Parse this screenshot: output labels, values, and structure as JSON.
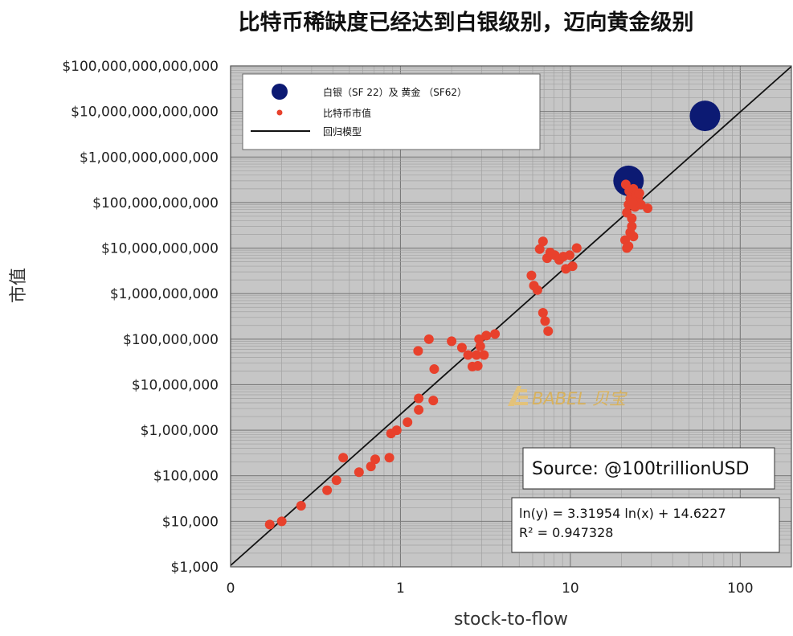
{
  "chart_data": {
    "type": "scatter",
    "title": "比特币稀缺度已经达到白银级别，迈向黄金级别",
    "xlabel": "stock-to-flow",
    "ylabel": "市值",
    "x_scale": "log",
    "y_scale": "log",
    "xlim": [
      0.1,
      200
    ],
    "ylim": [
      1000,
      100000000000000
    ],
    "x_ticks": [
      {
        "value": 0.1,
        "label": "0"
      },
      {
        "value": 1,
        "label": "1"
      },
      {
        "value": 10,
        "label": "10"
      },
      {
        "value": 100,
        "label": "100"
      }
    ],
    "y_ticks": [
      {
        "value": 1000,
        "label": "$1,000"
      },
      {
        "value": 10000,
        "label": "$10,000"
      },
      {
        "value": 100000,
        "label": "$100,000"
      },
      {
        "value": 1000000,
        "label": "$1,000,000"
      },
      {
        "value": 10000000,
        "label": "$10,000,000"
      },
      {
        "value": 100000000,
        "label": "$100,000,000"
      },
      {
        "value": 1000000000,
        "label": "$1,000,000,000"
      },
      {
        "value": 10000000000,
        "label": "$10,000,000,000"
      },
      {
        "value": 100000000000,
        "label": "$100,000,000,000"
      },
      {
        "value": 1000000000000,
        "label": "$1,000,000,000,000"
      },
      {
        "value": 10000000000000,
        "label": "$10,000,000,000,000"
      },
      {
        "value": 100000000000000,
        "label": "$100,000,000,000,000"
      }
    ],
    "grid": true,
    "legend_position": "top-left",
    "series": [
      {
        "name": "白银（SF 22）及 黄金 （SF62）",
        "kind": "scatter",
        "color": "#0c1a73",
        "marker": "large",
        "points": [
          {
            "x": 22,
            "y": 300000000000
          },
          {
            "x": 62,
            "y": 8000000000000
          }
        ]
      },
      {
        "name": "比特币市值",
        "kind": "scatter",
        "color": "#e8412c",
        "marker": "small",
        "points": [
          {
            "x": 0.17,
            "y": 8500
          },
          {
            "x": 0.2,
            "y": 10000
          },
          {
            "x": 0.26,
            "y": 22000
          },
          {
            "x": 0.37,
            "y": 48000
          },
          {
            "x": 0.42,
            "y": 80000
          },
          {
            "x": 0.46,
            "y": 250000
          },
          {
            "x": 0.57,
            "y": 120000
          },
          {
            "x": 0.67,
            "y": 160000
          },
          {
            "x": 0.71,
            "y": 230000
          },
          {
            "x": 0.86,
            "y": 250000
          },
          {
            "x": 0.88,
            "y": 850000
          },
          {
            "x": 0.95,
            "y": 1000000
          },
          {
            "x": 1.1,
            "y": 1500000
          },
          {
            "x": 1.28,
            "y": 2800000
          },
          {
            "x": 1.28,
            "y": 5000000
          },
          {
            "x": 1.56,
            "y": 4500000
          },
          {
            "x": 1.58,
            "y": 22000000
          },
          {
            "x": 1.27,
            "y": 55000000
          },
          {
            "x": 1.47,
            "y": 100000000
          },
          {
            "x": 2.0,
            "y": 90000000
          },
          {
            "x": 2.3,
            "y": 65000000
          },
          {
            "x": 2.5,
            "y": 45000000
          },
          {
            "x": 2.65,
            "y": 25000000
          },
          {
            "x": 2.85,
            "y": 26000000
          },
          {
            "x": 2.8,
            "y": 45000000
          },
          {
            "x": 2.95,
            "y": 70000000
          },
          {
            "x": 3.1,
            "y": 45000000
          },
          {
            "x": 2.9,
            "y": 100000000
          },
          {
            "x": 3.2,
            "y": 120000000
          },
          {
            "x": 3.6,
            "y": 130000000
          },
          {
            "x": 5.9,
            "y": 2500000000
          },
          {
            "x": 6.1,
            "y": 1500000000
          },
          {
            "x": 6.4,
            "y": 1200000000
          },
          {
            "x": 6.6,
            "y": 9500000000
          },
          {
            "x": 6.9,
            "y": 14000000000
          },
          {
            "x": 7.3,
            "y": 6000000000
          },
          {
            "x": 7.6,
            "y": 8000000000
          },
          {
            "x": 8.1,
            "y": 7000000000
          },
          {
            "x": 8.6,
            "y": 5500000000
          },
          {
            "x": 9.1,
            "y": 6500000000
          },
          {
            "x": 9.4,
            "y": 3500000000
          },
          {
            "x": 9.9,
            "y": 7000000000
          },
          {
            "x": 10.3,
            "y": 4000000000
          },
          {
            "x": 10.9,
            "y": 10000000000
          },
          {
            "x": 6.9,
            "y": 380000000
          },
          {
            "x": 7.1,
            "y": 250000000
          },
          {
            "x": 7.4,
            "y": 150000000
          },
          {
            "x": 21,
            "y": 15000000000
          },
          {
            "x": 21.5,
            "y": 10000000000
          },
          {
            "x": 22,
            "y": 11000000000
          },
          {
            "x": 22.5,
            "y": 22000000000
          },
          {
            "x": 23,
            "y": 30000000000
          },
          {
            "x": 23.5,
            "y": 18000000000
          },
          {
            "x": 21.5,
            "y": 60000000000
          },
          {
            "x": 22,
            "y": 90000000000
          },
          {
            "x": 22.5,
            "y": 120000000000
          },
          {
            "x": 23,
            "y": 45000000000
          },
          {
            "x": 24,
            "y": 80000000000
          },
          {
            "x": 25,
            "y": 130000000000
          },
          {
            "x": 26,
            "y": 90000000000
          },
          {
            "x": 28.5,
            "y": 75000000000
          },
          {
            "x": 21.2,
            "y": 250000000000
          },
          {
            "x": 22.2,
            "y": 180000000000
          },
          {
            "x": 23.5,
            "y": 200000000000
          },
          {
            "x": 24.5,
            "y": 150000000000
          },
          {
            "x": 25.5,
            "y": 160000000000
          },
          {
            "x": 23.2,
            "y": 100000000000
          }
        ]
      },
      {
        "name": "回归模型",
        "kind": "line",
        "color": "#111111",
        "equation": {
          "slope": 3.31954,
          "intercept": 14.6227
        },
        "x_range": [
          0.1,
          200
        ]
      }
    ],
    "annotations": {
      "source": "Source: @100trillionUSD",
      "equation": "ln(y) = 3.31954 ln(x) + 14.6227",
      "r2": "R² = 0.947328"
    },
    "watermark": "BABEL 贝宝"
  }
}
